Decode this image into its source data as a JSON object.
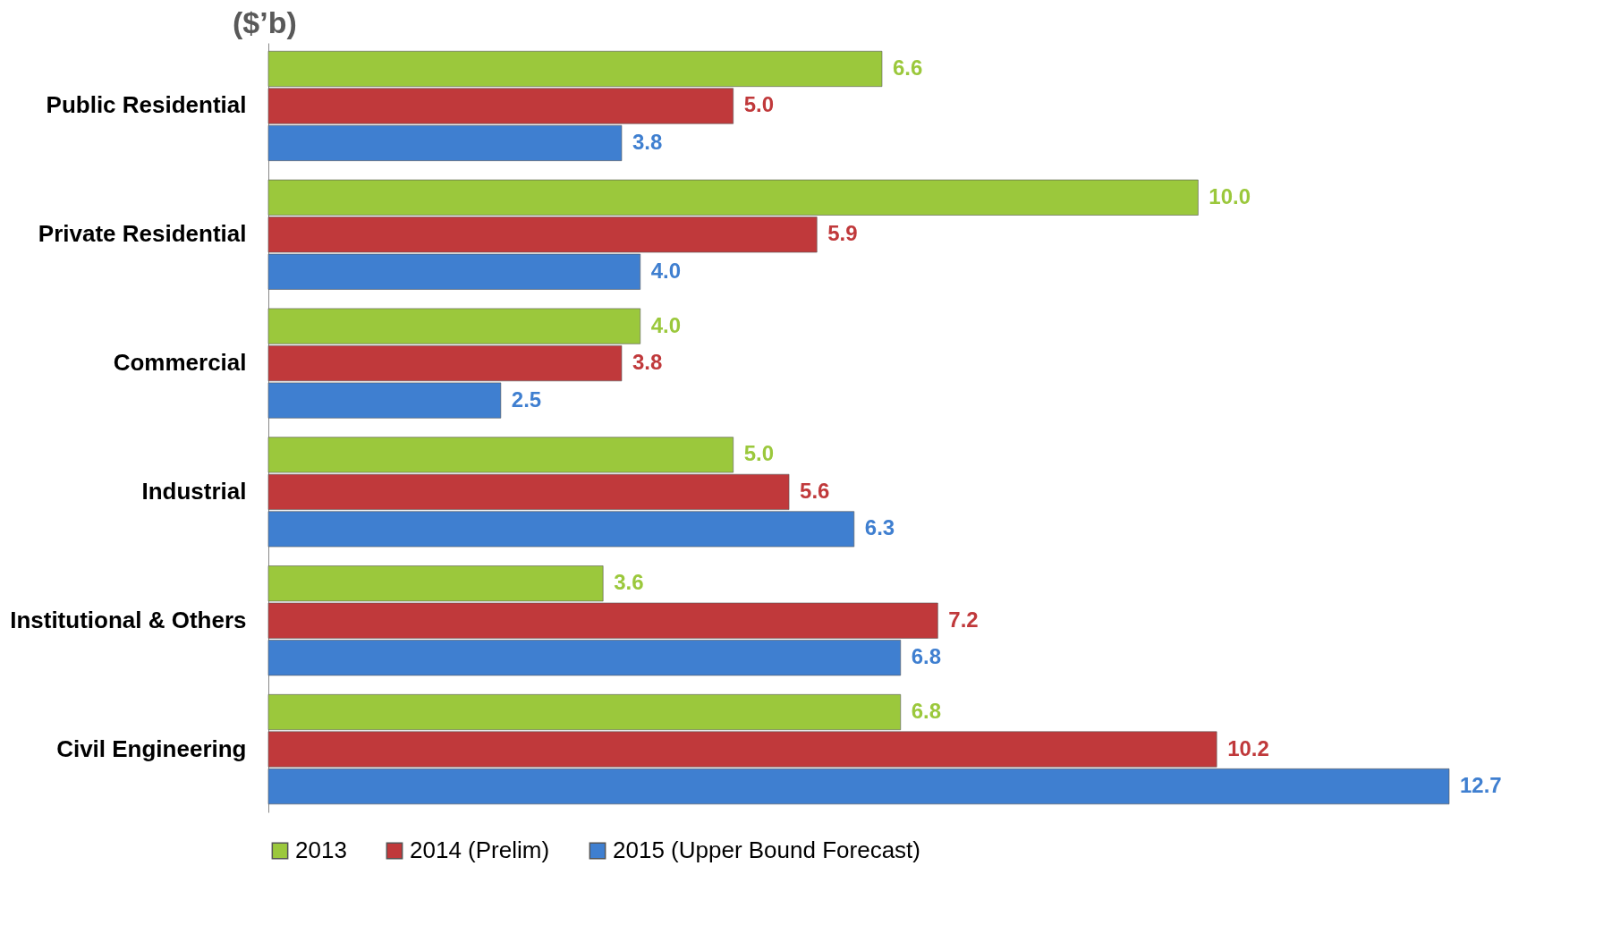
{
  "chart_data": {
    "type": "bar",
    "orientation": "horizontal",
    "title": "($’b)",
    "legend": "bottom",
    "categories": [
      "Public Residential",
      "Private Residential",
      "Commercial",
      "Industrial",
      "Institutional & Others",
      "Civil Engineering"
    ],
    "series": [
      {
        "name": "2013",
        "color": "#9bc83c",
        "values": [
          6.6,
          10.0,
          4.0,
          5.0,
          3.6,
          6.8
        ],
        "value_labels": [
          "6.6",
          "10.0",
          "4.0",
          "5.0",
          "3.6",
          "6.8"
        ]
      },
      {
        "name": "2014 (Prelim)",
        "color": "#c0393b",
        "values": [
          5.0,
          5.9,
          3.8,
          5.6,
          7.2,
          10.2
        ],
        "value_labels": [
          "5.0",
          "5.9",
          "3.8",
          "5.6",
          "7.2",
          "10.2"
        ]
      },
      {
        "name": "2015 (Upper Bound Forecast)",
        "color": "#3f7fd0",
        "values": [
          3.8,
          4.0,
          2.5,
          6.3,
          6.8,
          12.7
        ],
        "value_labels": [
          "3.8",
          "4.0",
          "2.5",
          "6.3",
          "6.8",
          "12.7"
        ]
      }
    ]
  }
}
